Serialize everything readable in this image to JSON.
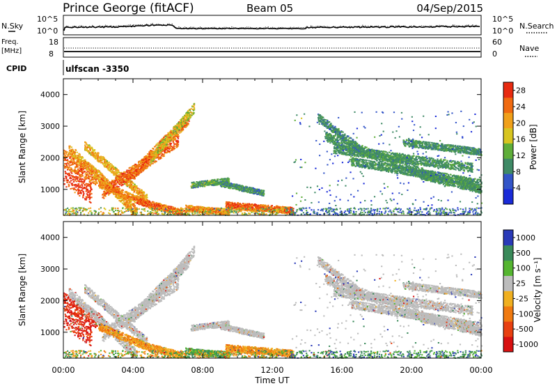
{
  "header": {
    "station": "Prince George (fitACF)",
    "beam": "Beam 05",
    "date": "04/Sep/2015"
  },
  "noise_panel": {
    "left_label": "N.Sky",
    "left_ticks": [
      "10^5",
      "10^0"
    ],
    "right_label": "N.Search",
    "right_ticks": [
      "10^5",
      "10^0"
    ]
  },
  "freq_panel": {
    "left_label_1": "Freq.",
    "left_label_2": "[MHz]",
    "left_ticks": [
      "18",
      "8"
    ],
    "right_label": "Nave",
    "right_ticks": [
      "60",
      "0"
    ]
  },
  "cpid": {
    "label": "CPID",
    "value": "ulfscan -3350"
  },
  "colors": {
    "power_scale": [
      "#1a2bd8",
      "#3355c8",
      "#3f8a66",
      "#5fae3a",
      "#d8c520",
      "#f0a01a",
      "#f06a10",
      "#e82a10"
    ],
    "velocity_scale": [
      "#2a3ab8",
      "#3a8a5a",
      "#55b530",
      "#bcbcbc",
      "#f0b020",
      "#f07a10",
      "#e84010",
      "#d81010"
    ]
  },
  "chart_data": [
    {
      "type": "heatmap",
      "panel": "power",
      "xlabel": "",
      "ylabel": "Slant Range [km]",
      "x_ticks": [
        "00:00",
        "04:00",
        "08:00",
        "12:00",
        "16:00",
        "20:00",
        "00:00"
      ],
      "x_range_hours": [
        0,
        24
      ],
      "y_range_km": [
        180,
        4500
      ],
      "y_ticks": [
        1000,
        2000,
        3000,
        4000
      ],
      "colorbar_label": "Power [dB]",
      "colorbar_ticks": [
        "4",
        "8",
        "12",
        "16",
        "20",
        "24",
        "28"
      ],
      "colorbar_range": [
        0,
        30
      ]
    },
    {
      "type": "heatmap",
      "panel": "velocity",
      "xlabel": "Time UT",
      "ylabel": "Slant Range [km]",
      "x_ticks": [
        "00:00",
        "04:00",
        "08:00",
        "12:00",
        "16:00",
        "20:00",
        "00:00"
      ],
      "x_range_hours": [
        0,
        24
      ],
      "y_range_km": [
        180,
        4500
      ],
      "y_ticks": [
        1000,
        2000,
        3000,
        4000
      ],
      "colorbar_label": "Velocity [m s⁻¹]",
      "colorbar_ticks": [
        "1000",
        "500",
        "100",
        "25",
        "-25",
        "-100",
        "-500",
        "-1000"
      ]
    }
  ]
}
